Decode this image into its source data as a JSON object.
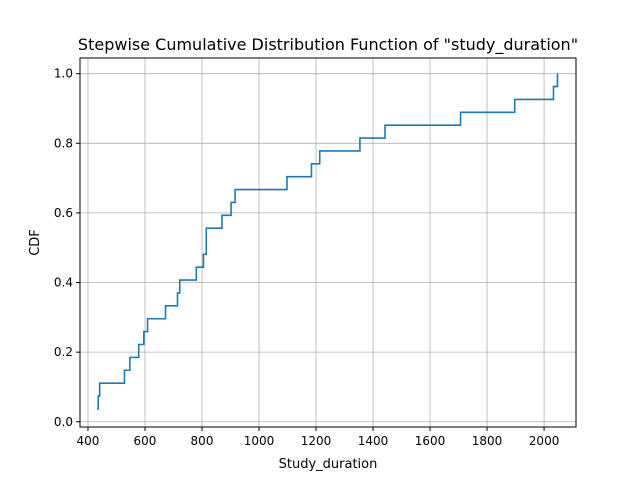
{
  "chart_data": {
    "type": "line",
    "step": "post",
    "title": "Stepwise Cumulative Distribution Function of \"study_duration\"",
    "xlabel": "Study_duration",
    "ylabel": "CDF",
    "xlim": [
      372,
      2112
    ],
    "ylim": [
      -0.015,
      1.045
    ],
    "xticks": [
      400,
      600,
      800,
      1000,
      1200,
      1400,
      1600,
      1800,
      2000
    ],
    "yticks": [
      0.0,
      0.2,
      0.4,
      0.6,
      0.8,
      1.0
    ],
    "xtick_labels": [
      "400",
      "600",
      "800",
      "1000",
      "1200",
      "1400",
      "1600",
      "1800",
      "2000"
    ],
    "ytick_labels": [
      "0.0",
      "0.2",
      "0.4",
      "0.6",
      "0.8",
      "1.0"
    ],
    "grid": true,
    "line_color": "#1f77b4",
    "series": [
      {
        "x": [
          432,
          436,
          441,
          528,
          547,
          578,
          596,
          609,
          672,
          714,
          722,
          729,
          780,
          805,
          815,
          870,
          902,
          916,
          1098,
          1184,
          1213,
          1354,
          1442,
          1707,
          1897,
          2033,
          2042,
          2047
        ],
        "y": [
          0.037,
          0.074,
          0.111,
          0.148,
          0.185,
          0.222,
          0.259,
          0.296,
          0.333,
          0.37,
          0.407,
          0.407,
          0.444,
          0.481,
          0.556,
          0.593,
          0.63,
          0.667,
          0.704,
          0.741,
          0.778,
          0.815,
          0.852,
          0.889,
          0.926,
          0.963,
          0.963,
          1.0
        ]
      }
    ]
  }
}
